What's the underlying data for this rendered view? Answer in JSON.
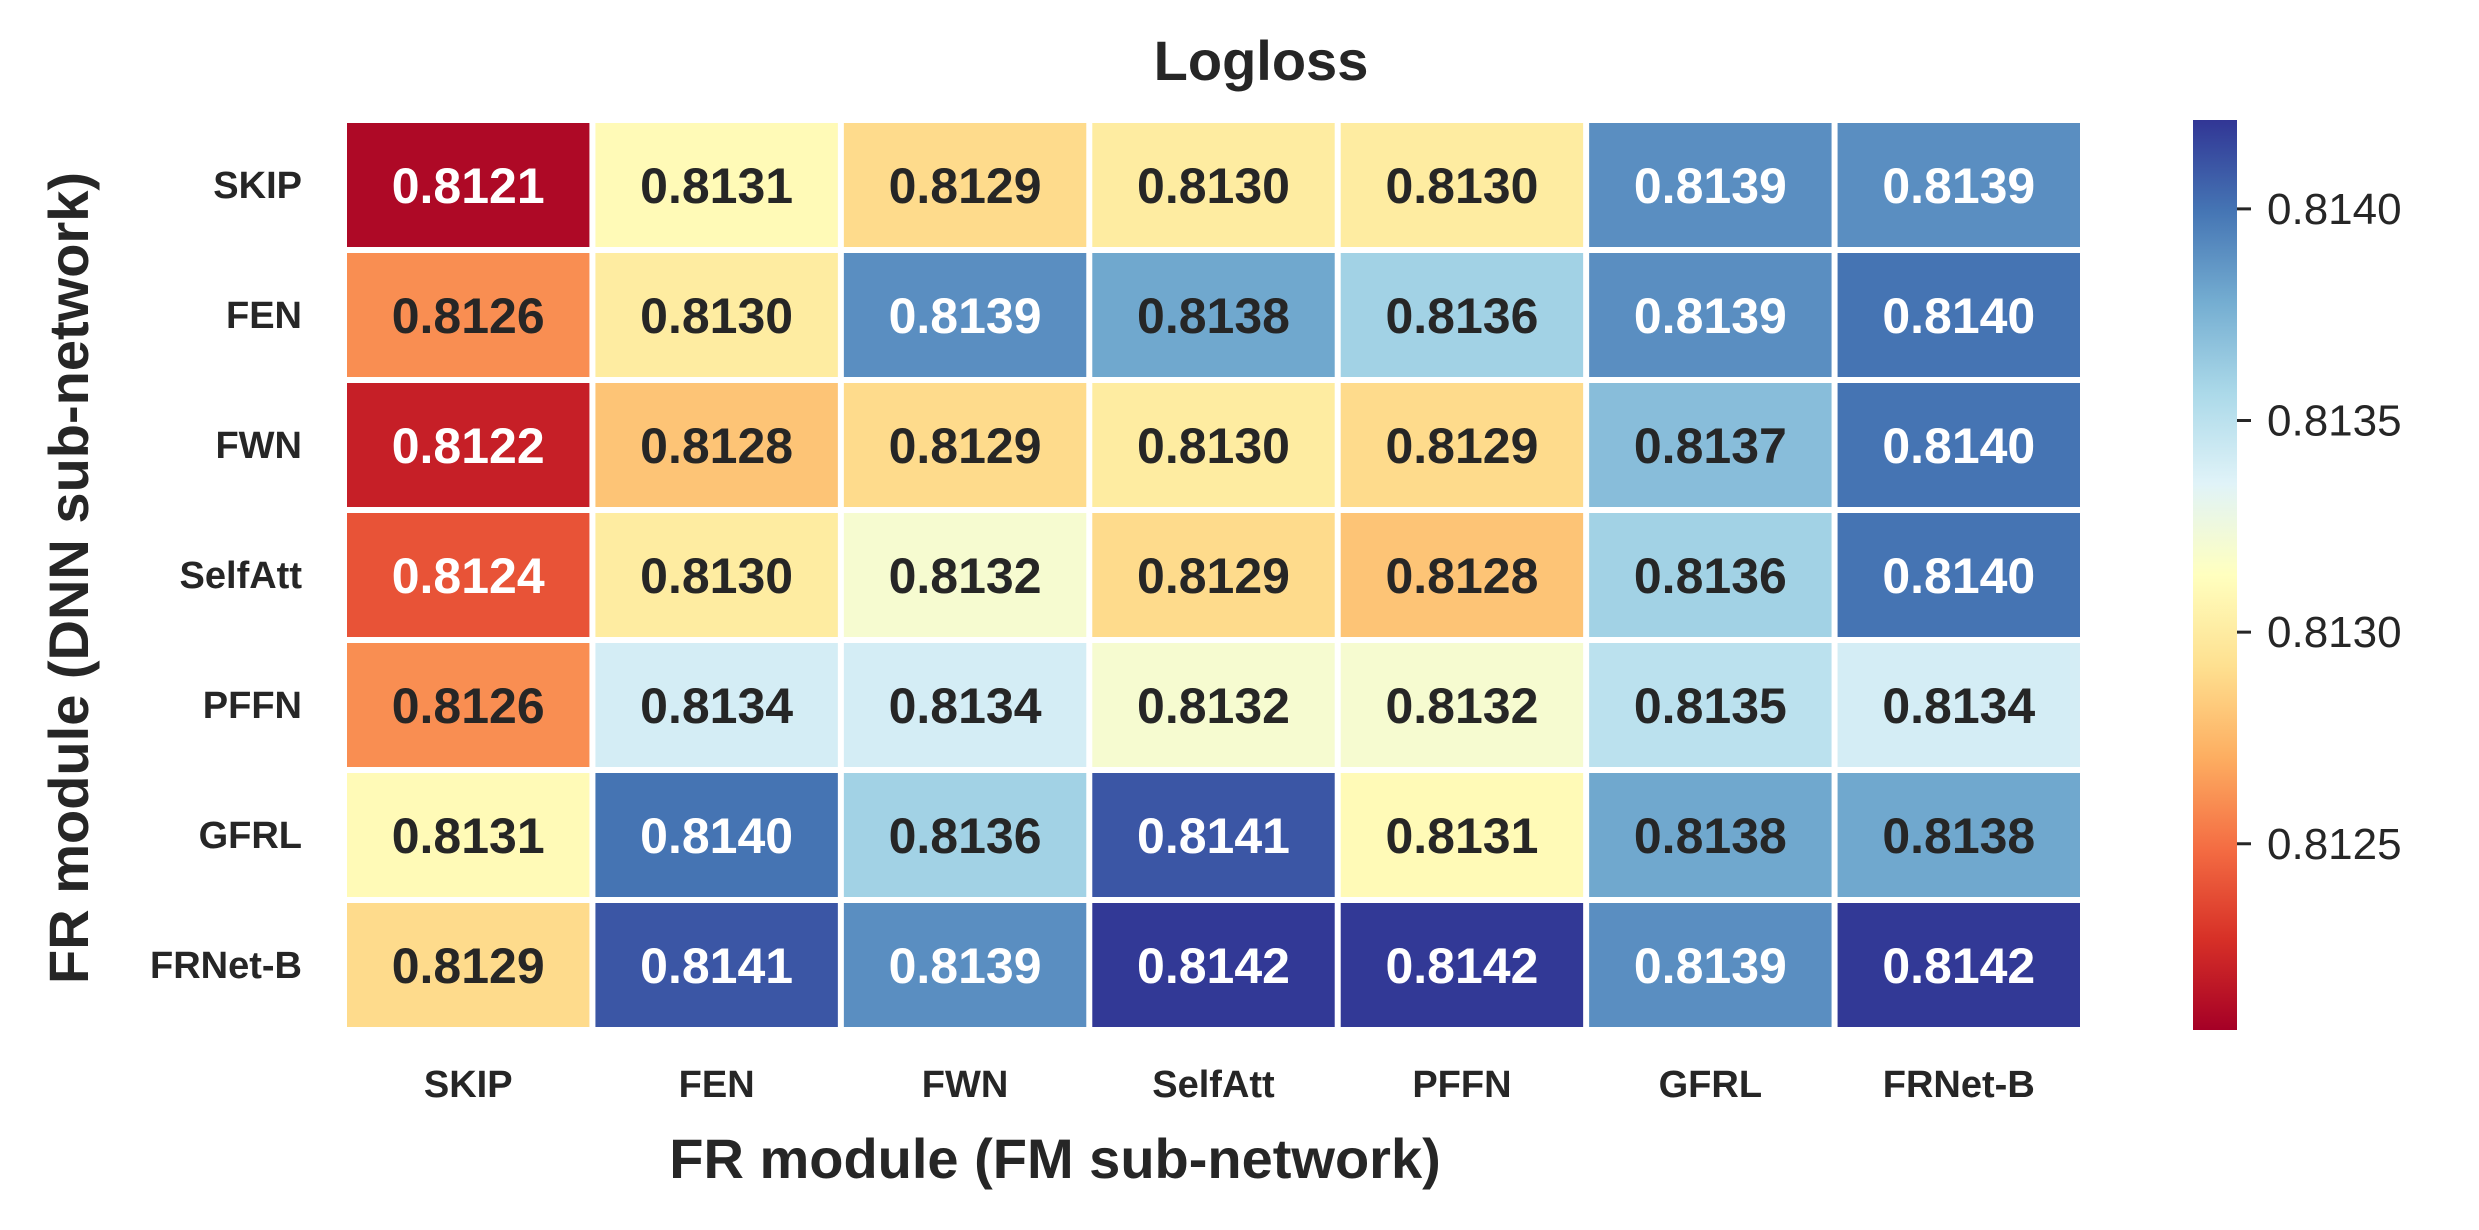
{
  "chart_data": {
    "type": "heatmap",
    "title": "Logloss",
    "xlabel": "FR module (FM sub-network)",
    "ylabel": "FR module (DNN sub-network)",
    "x_categories": [
      "SKIP",
      "FEN",
      "FWN",
      "SelfAtt",
      "PFFN",
      "GFRL",
      "FRNet-B"
    ],
    "y_categories": [
      "SKIP",
      "FEN",
      "FWN",
      "SelfAtt",
      "PFFN",
      "GFRL",
      "FRNet-B"
    ],
    "values": [
      [
        0.8121,
        0.8131,
        0.8129,
        0.813,
        0.813,
        0.8139,
        0.8139
      ],
      [
        0.8126,
        0.813,
        0.8139,
        0.8138,
        0.8136,
        0.8139,
        0.814
      ],
      [
        0.8122,
        0.8128,
        0.8129,
        0.813,
        0.8129,
        0.8137,
        0.814
      ],
      [
        0.8124,
        0.813,
        0.8132,
        0.8129,
        0.8128,
        0.8136,
        0.814
      ],
      [
        0.8126,
        0.8134,
        0.8134,
        0.8132,
        0.8132,
        0.8135,
        0.8134
      ],
      [
        0.8131,
        0.814,
        0.8136,
        0.8141,
        0.8131,
        0.8138,
        0.8138
      ],
      [
        0.8129,
        0.8141,
        0.8139,
        0.8142,
        0.8142,
        0.8139,
        0.8142
      ]
    ],
    "value_format_decimals": 4,
    "colormap": "RdYlBu",
    "colormap_stops": [
      "#a50026",
      "#d73027",
      "#f46d43",
      "#fdae61",
      "#fee090",
      "#ffffbf",
      "#e0f3f8",
      "#abd9e9",
      "#74add1",
      "#4575b4",
      "#313695"
    ],
    "colorbar": {
      "vmin": 0.81206,
      "vmax": 0.81421,
      "ticks": [
        0.8125,
        0.813,
        0.8135,
        0.814
      ],
      "tick_labels": [
        "0.8125",
        "0.8130",
        "0.8135",
        "0.8140"
      ],
      "position": "right"
    },
    "cell_border_color": "#ffffff",
    "text_color_light": "#ffffff",
    "text_color_dark": "#262626"
  }
}
